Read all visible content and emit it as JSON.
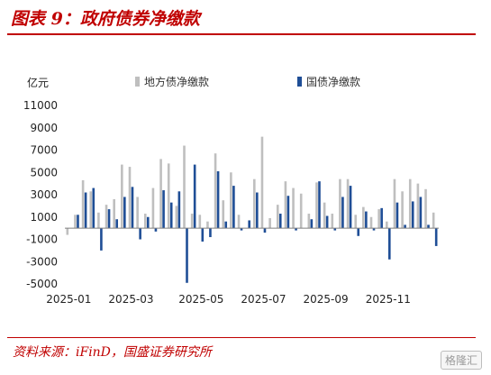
{
  "header": {
    "title": "图表 9：政府债券净缴款"
  },
  "footer": {
    "source": "资料来源：iFinD，国盛证券研究所",
    "watermark": "格隆汇"
  },
  "chart_data": {
    "type": "bar",
    "unit_label": "亿元",
    "ylim": [
      -5000,
      11000
    ],
    "yticks": [
      11000,
      9000,
      7000,
      5000,
      3000,
      1000,
      -1000,
      -3000,
      -5000
    ],
    "xtick_labels": [
      "2025-01",
      "2025-03",
      "2025-05",
      "2025-07",
      "2025-09",
      "2025-11"
    ],
    "xtick_index": [
      0,
      8,
      17,
      25,
      33,
      41
    ],
    "legend_position": "top",
    "series": [
      {
        "name": "地方债净缴款",
        "color": "#bfbfbf",
        "values": [
          -600,
          1200,
          4300,
          3300,
          1400,
          2100,
          2600,
          5700,
          5500,
          2800,
          1300,
          3600,
          6200,
          5800,
          2000,
          7400,
          1300,
          1200,
          600,
          6700,
          2500,
          5000,
          1200,
          0,
          4400,
          8200,
          900,
          2100,
          4200,
          3600,
          3100,
          1300,
          4100,
          2300,
          1300,
          4400,
          4400,
          1200,
          1900,
          1000,
          1700,
          600,
          4400,
          3300,
          4400,
          4000,
          3500,
          1400
        ]
      },
      {
        "name": "国债净缴款",
        "color": "#1f4e96",
        "values": [
          0,
          1200,
          3200,
          3600,
          -2000,
          1700,
          800,
          2800,
          3700,
          -1000,
          1000,
          -300,
          3400,
          2300,
          3300,
          -4900,
          5700,
          -1200,
          -800,
          5100,
          600,
          3800,
          -200,
          700,
          3200,
          -400,
          0,
          1300,
          2900,
          -200,
          0,
          800,
          4200,
          1100,
          -200,
          2800,
          3800,
          -700,
          1500,
          -200,
          1800,
          -2800,
          2300,
          300,
          2400,
          2800,
          300,
          -1600
        ]
      }
    ]
  }
}
